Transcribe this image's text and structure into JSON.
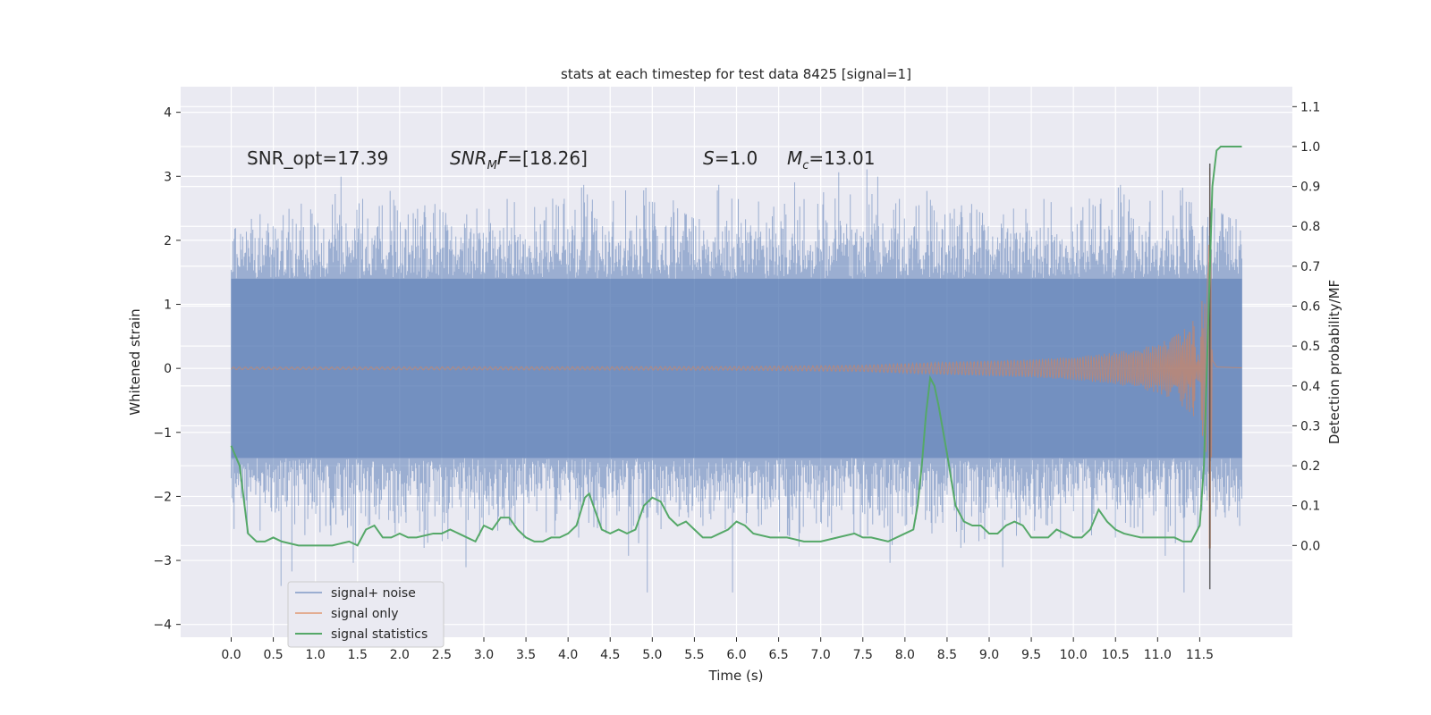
{
  "chart_data": {
    "type": "line",
    "title": "stats at each timestep for test data 8425 [signal=1]",
    "xlabel": "Time (s)",
    "ylabel": "Whitened strain",
    "y2label": "Detection probability/MF",
    "xlim": [
      -0.6,
      12.6
    ],
    "ylim": [
      -4.2,
      4.4
    ],
    "y2lim": [
      -0.23,
      1.15
    ],
    "xticks": [
      "0.0",
      "0.5",
      "1.0",
      "1.5",
      "2.0",
      "2.5",
      "3.0",
      "3.5",
      "4.0",
      "4.5",
      "5.0",
      "5.5",
      "6.0",
      "6.5",
      "7.0",
      "7.5",
      "8.0",
      "8.5",
      "9.0",
      "9.5",
      "10.0",
      "10.5",
      "11.0",
      "11.5"
    ],
    "yticks": [
      "4",
      "3",
      "2",
      "1",
      "0",
      "−1",
      "−2",
      "−3",
      "−4"
    ],
    "y2ticks": [
      "1.1",
      "1.0",
      "0.9",
      "0.8",
      "0.7",
      "0.6",
      "0.5",
      "0.4",
      "0.3",
      "0.2",
      "0.1",
      "0.0"
    ],
    "grid": true,
    "legend_position": "lower-left",
    "annotations": [
      {
        "text": "SNR_opt=17.39"
      },
      {
        "text": "SNR_MF=[18.26]"
      },
      {
        "text": "S=1.0"
      },
      {
        "text": "M_c=13.01"
      }
    ],
    "series": [
      {
        "name": "signal+ noise",
        "color": "#4c72b0",
        "kind": "noise-envelope",
        "t_range": [
          0.0,
          12.0
        ],
        "inner_bounds": [
          -1.4,
          1.4
        ],
        "outer_bounds": [
          -3.5,
          4.1
        ]
      },
      {
        "name": "signal only",
        "color": "#dd8452",
        "kind": "chirp",
        "t_range": [
          0.0,
          12.0
        ],
        "merger_time": 11.62,
        "envelope": {
          "x": [
            0.0,
            6.0,
            7.5,
            8.5,
            9.5,
            10.0,
            10.5,
            11.0,
            11.2,
            11.4,
            11.5,
            11.55,
            11.6,
            11.62,
            11.65,
            11.7,
            12.0
          ],
          "y": [
            0.02,
            0.03,
            0.05,
            0.1,
            0.14,
            0.18,
            0.25,
            0.38,
            0.5,
            0.7,
            0.95,
            1.2,
            1.5,
            3.5,
            0.3,
            0.05,
            0.02
          ]
        }
      },
      {
        "name": "signal statistics",
        "color": "#55a868",
        "kind": "line",
        "axis": "right",
        "x": [
          0.0,
          0.1,
          0.2,
          0.3,
          0.4,
          0.5,
          0.6,
          0.8,
          1.0,
          1.2,
          1.4,
          1.5,
          1.6,
          1.7,
          1.8,
          1.9,
          2.0,
          2.1,
          2.2,
          2.4,
          2.5,
          2.6,
          2.7,
          2.8,
          2.9,
          3.0,
          3.1,
          3.2,
          3.3,
          3.4,
          3.5,
          3.6,
          3.7,
          3.8,
          3.9,
          4.0,
          4.1,
          4.2,
          4.25,
          4.3,
          4.4,
          4.5,
          4.6,
          4.7,
          4.8,
          4.9,
          5.0,
          5.1,
          5.2,
          5.3,
          5.4,
          5.5,
          5.6,
          5.7,
          5.8,
          5.9,
          6.0,
          6.1,
          6.2,
          6.4,
          6.6,
          6.8,
          7.0,
          7.2,
          7.4,
          7.5,
          7.6,
          7.8,
          8.0,
          8.1,
          8.15,
          8.2,
          8.25,
          8.3,
          8.35,
          8.4,
          8.5,
          8.6,
          8.7,
          8.8,
          8.9,
          9.0,
          9.1,
          9.2,
          9.3,
          9.4,
          9.5,
          9.6,
          9.7,
          9.8,
          9.9,
          10.0,
          10.1,
          10.2,
          10.3,
          10.4,
          10.5,
          10.6,
          10.8,
          11.0,
          11.2,
          11.3,
          11.4,
          11.5,
          11.55,
          11.6,
          11.65,
          11.7,
          11.75,
          11.8,
          11.9,
          12.0
        ],
        "y": [
          0.25,
          0.2,
          0.03,
          0.01,
          0.01,
          0.02,
          0.01,
          0.0,
          0.0,
          0.0,
          0.01,
          0.0,
          0.04,
          0.05,
          0.02,
          0.02,
          0.03,
          0.02,
          0.02,
          0.03,
          0.03,
          0.04,
          0.03,
          0.02,
          0.01,
          0.05,
          0.04,
          0.07,
          0.07,
          0.04,
          0.02,
          0.01,
          0.01,
          0.02,
          0.02,
          0.03,
          0.05,
          0.12,
          0.13,
          0.1,
          0.04,
          0.03,
          0.04,
          0.03,
          0.04,
          0.1,
          0.12,
          0.11,
          0.07,
          0.05,
          0.06,
          0.04,
          0.02,
          0.02,
          0.03,
          0.04,
          0.06,
          0.05,
          0.03,
          0.02,
          0.02,
          0.01,
          0.01,
          0.02,
          0.03,
          0.02,
          0.02,
          0.01,
          0.03,
          0.04,
          0.1,
          0.2,
          0.33,
          0.42,
          0.4,
          0.35,
          0.23,
          0.1,
          0.06,
          0.05,
          0.05,
          0.03,
          0.03,
          0.05,
          0.06,
          0.05,
          0.02,
          0.02,
          0.02,
          0.04,
          0.03,
          0.02,
          0.02,
          0.04,
          0.09,
          0.06,
          0.04,
          0.03,
          0.02,
          0.02,
          0.02,
          0.01,
          0.01,
          0.05,
          0.2,
          0.55,
          0.9,
          0.99,
          1.0,
          1.0,
          1.0,
          1.0
        ]
      }
    ]
  }
}
